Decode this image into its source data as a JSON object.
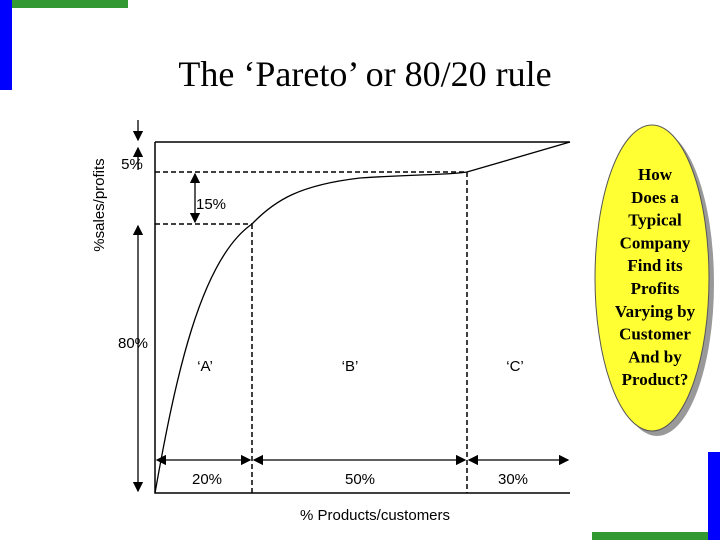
{
  "header": {
    "title": "The ‘Pareto’ or 80/20 rule"
  },
  "diagram": {
    "y_axis_label": "%sales/profits",
    "x_axis_label": "% Products/customers",
    "vertical_segments": [
      "5%",
      "15%",
      "80%"
    ],
    "groups": [
      "‘A’",
      "‘B’",
      "‘C’"
    ],
    "horizontal_segments": [
      "20%",
      "50%",
      "30%"
    ]
  },
  "callout": {
    "lines": [
      "How",
      "Does a",
      "Typical",
      "Company",
      "Find its",
      "Profits",
      "Varying by",
      "Customer",
      "And by",
      "Product?"
    ]
  }
}
